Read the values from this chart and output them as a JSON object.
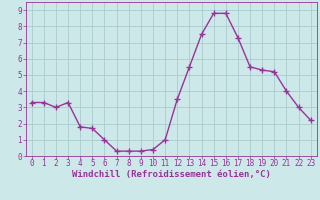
{
  "x": [
    0,
    1,
    2,
    3,
    4,
    5,
    6,
    7,
    8,
    9,
    10,
    11,
    12,
    13,
    14,
    15,
    16,
    17,
    18,
    19,
    20,
    21,
    22,
    23
  ],
  "y": [
    3.3,
    3.3,
    3.0,
    3.3,
    1.8,
    1.7,
    1.0,
    0.3,
    0.3,
    0.3,
    0.4,
    1.0,
    3.5,
    5.5,
    7.5,
    8.8,
    8.8,
    7.3,
    5.5,
    5.3,
    5.2,
    4.0,
    3.0,
    2.2
  ],
  "line_color": "#993399",
  "marker": "+",
  "marker_size": 4,
  "line_width": 1.0,
  "bg_color": "#cce8e8",
  "grid_color": "#aacccc",
  "xlabel": "Windchill (Refroidissement éolien,°C)",
  "xlabel_color": "#993399",
  "xlabel_fontsize": 6.5,
  "tick_color": "#993399",
  "tick_fontsize": 5.5,
  "xlim": [
    -0.5,
    23.5
  ],
  "ylim": [
    0,
    9.5
  ],
  "yticks": [
    0,
    1,
    2,
    3,
    4,
    5,
    6,
    7,
    8,
    9
  ],
  "xticks": [
    0,
    1,
    2,
    3,
    4,
    5,
    6,
    7,
    8,
    9,
    10,
    11,
    12,
    13,
    14,
    15,
    16,
    17,
    18,
    19,
    20,
    21,
    22,
    23
  ]
}
